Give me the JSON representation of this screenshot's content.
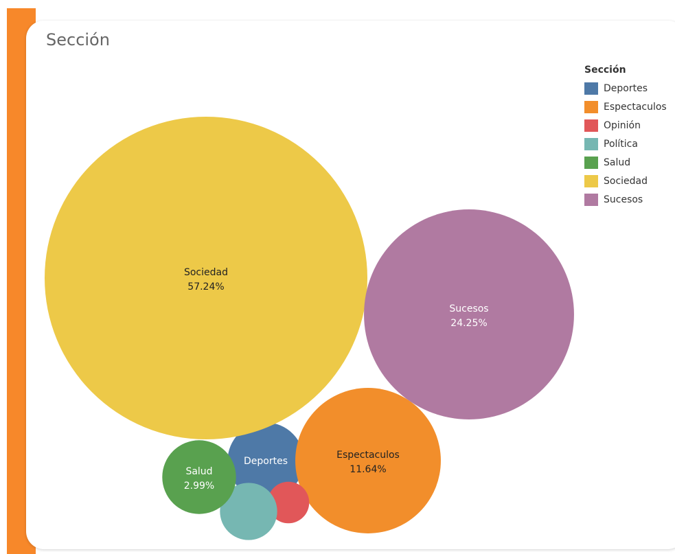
{
  "chart_data": {
    "type": "bubble",
    "title": "Sección",
    "legend_title": "Sección",
    "legend_position": "top-right",
    "series": [
      {
        "name": "Deportes",
        "percent": 3.2,
        "label": "Deportes",
        "value_label": "",
        "color": "#4e79a7",
        "text_color": "#ffffff"
      },
      {
        "name": "Espectaculos",
        "percent": 11.64,
        "label": "Espectaculos",
        "value_label": "11.64%",
        "color": "#f28e2b",
        "text_color": "#222222"
      },
      {
        "name": "Opinión",
        "percent": 0.95,
        "label": "",
        "value_label": "",
        "color": "#e15759",
        "text_color": "#ffffff"
      },
      {
        "name": "Política",
        "percent": 1.8,
        "label": "",
        "value_label": "",
        "color": "#76b7b2",
        "text_color": "#ffffff"
      },
      {
        "name": "Salud",
        "percent": 2.99,
        "label": "Salud",
        "value_label": "2.99%",
        "color": "#59a14f",
        "text_color": "#ffffff"
      },
      {
        "name": "Sociedad",
        "percent": 57.24,
        "label": "Sociedad",
        "value_label": "57.24%",
        "color": "#edc948",
        "text_color": "#222222"
      },
      {
        "name": "Sucesos",
        "percent": 24.25,
        "label": "Sucesos",
        "value_label": "24.25%",
        "color": "#b07aa1",
        "text_color": "#ffffff"
      }
    ]
  }
}
